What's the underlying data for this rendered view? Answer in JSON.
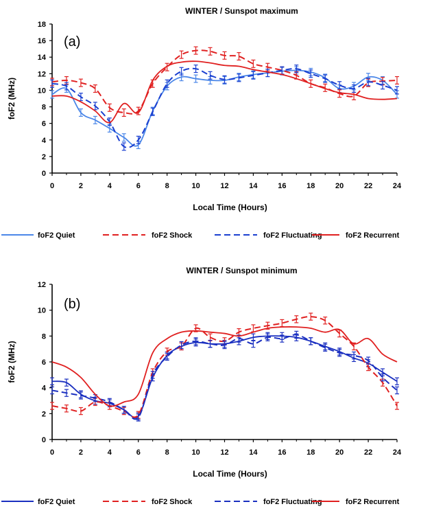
{
  "chart_data": [
    {
      "type": "line",
      "title": "WINTER / Sunspot maximum",
      "panel_label": "(a)",
      "xlabel": "Local Time (Hours)",
      "ylabel": "foF2 (MHz)",
      "xlim": [
        0,
        24
      ],
      "ylim": [
        0,
        18
      ],
      "x_ticks": [
        "0",
        "2",
        "4",
        "6",
        "8",
        "10",
        "12",
        "14",
        "16",
        "18",
        "20",
        "22",
        "24"
      ],
      "y_ticks": [
        "0",
        "2",
        "4",
        "6",
        "8",
        "10",
        "12",
        "14",
        "16",
        "18"
      ],
      "grid": false,
      "legend_position": "bottom",
      "x": [
        0,
        1,
        2,
        3,
        4,
        5,
        6,
        7,
        8,
        9,
        10,
        11,
        12,
        13,
        14,
        15,
        16,
        17,
        18,
        19,
        20,
        21,
        22,
        23,
        24
      ],
      "series": [
        {
          "name": "foF2 Quiet",
          "color": "#4a86e8",
          "style": "solid",
          "errorbars": true,
          "values": [
            9.5,
            10.2,
            7.3,
            6.4,
            5.4,
            4.3,
            3.4,
            7.5,
            10.5,
            11.6,
            11.4,
            11.2,
            11.2,
            11.6,
            11.9,
            12.1,
            12.3,
            12.4,
            12.2,
            11.5,
            10.2,
            10.5,
            11.6,
            11.2,
            9.5
          ]
        },
        {
          "name": "foF2 Shock",
          "color": "#e02020",
          "style": "dashed",
          "errorbars": true,
          "values": [
            11.0,
            11.2,
            10.9,
            10.2,
            7.9,
            7.3,
            7.5,
            10.8,
            12.8,
            14.3,
            14.8,
            14.7,
            14.2,
            14.1,
            13.2,
            12.8,
            12.4,
            11.8,
            10.8,
            10.3,
            9.6,
            9.3,
            10.9,
            11.1,
            11.2
          ]
        },
        {
          "name": "foF2 Fluctuating",
          "color": "#1a3fd0",
          "style": "dashed",
          "errorbars": true,
          "values": [
            10.8,
            10.5,
            9.2,
            8.1,
            6.2,
            3.2,
            4.0,
            7.4,
            10.8,
            12.3,
            12.6,
            11.8,
            11.3,
            11.5,
            11.8,
            12.1,
            12.4,
            12.6,
            12.0,
            11.4,
            10.6,
            10.2,
            11.0,
            10.6,
            10.0
          ]
        },
        {
          "name": "foF2 Recurrent",
          "color": "#e02020",
          "style": "solid",
          "errorbars": false,
          "values": [
            9.3,
            9.3,
            8.6,
            7.5,
            6.1,
            8.4,
            7.3,
            11.2,
            12.9,
            13.4,
            13.5,
            13.3,
            13.0,
            12.9,
            12.5,
            12.2,
            11.9,
            11.4,
            10.8,
            10.2,
            9.7,
            9.5,
            9.0,
            8.9,
            9.0
          ]
        }
      ]
    },
    {
      "type": "line",
      "title": "WINTER / Sunspot minimum",
      "panel_label": "(b)",
      "xlabel": "Local Time (Hours)",
      "ylabel": "foF2 (MHz)",
      "xlim": [
        0,
        24
      ],
      "ylim": [
        0,
        12
      ],
      "x_ticks": [
        "0",
        "2",
        "4",
        "6",
        "8",
        "10",
        "12",
        "14",
        "16",
        "18",
        "20",
        "22",
        "24"
      ],
      "y_ticks": [
        "0",
        "2",
        "4",
        "6",
        "8",
        "10",
        "12"
      ],
      "grid": false,
      "legend_position": "bottom",
      "x": [
        0,
        1,
        2,
        3,
        4,
        5,
        6,
        7,
        8,
        9,
        10,
        11,
        12,
        13,
        14,
        15,
        16,
        17,
        18,
        19,
        20,
        21,
        22,
        23,
        24
      ],
      "series": [
        {
          "name": "foF2 Quiet",
          "color": "#1a2fc0",
          "style": "solid",
          "errorbars": true,
          "values": [
            4.5,
            4.4,
            3.5,
            3.0,
            2.8,
            2.3,
            1.8,
            4.8,
            6.5,
            7.2,
            7.5,
            7.4,
            7.4,
            7.6,
            7.9,
            8.0,
            8.0,
            7.9,
            7.6,
            7.2,
            6.8,
            6.3,
            5.9,
            5.2,
            4.5
          ]
        },
        {
          "name": "foF2 Shock",
          "color": "#e02020",
          "style": "dashed",
          "errorbars": true,
          "values": [
            2.6,
            2.4,
            2.2,
            2.9,
            2.6,
            2.2,
            1.9,
            5.2,
            6.8,
            7.2,
            8.6,
            7.9,
            7.6,
            8.3,
            8.6,
            8.8,
            9.0,
            9.3,
            9.5,
            9.2,
            8.2,
            7.2,
            5.6,
            4.4,
            2.6
          ]
        },
        {
          "name": "foF2 Fluctuating",
          "color": "#1a2fc0",
          "style": "dashed",
          "errorbars": true,
          "values": [
            3.8,
            3.6,
            3.4,
            3.2,
            2.9,
            2.3,
            1.7,
            5.0,
            6.4,
            7.3,
            7.6,
            7.4,
            7.3,
            7.8,
            7.4,
            7.9,
            7.8,
            8.1,
            7.6,
            7.1,
            6.7,
            6.5,
            6.1,
            4.8,
            3.8
          ]
        },
        {
          "name": "foF2 Recurrent",
          "color": "#e02020",
          "style": "solid",
          "errorbars": false,
          "values": [
            6.0,
            5.6,
            4.8,
            3.5,
            2.6,
            2.9,
            3.5,
            6.7,
            7.8,
            8.3,
            8.4,
            8.3,
            8.2,
            8.0,
            8.3,
            8.6,
            8.7,
            8.7,
            8.6,
            8.3,
            8.5,
            7.4,
            7.8,
            6.6,
            6.0
          ]
        }
      ]
    }
  ]
}
